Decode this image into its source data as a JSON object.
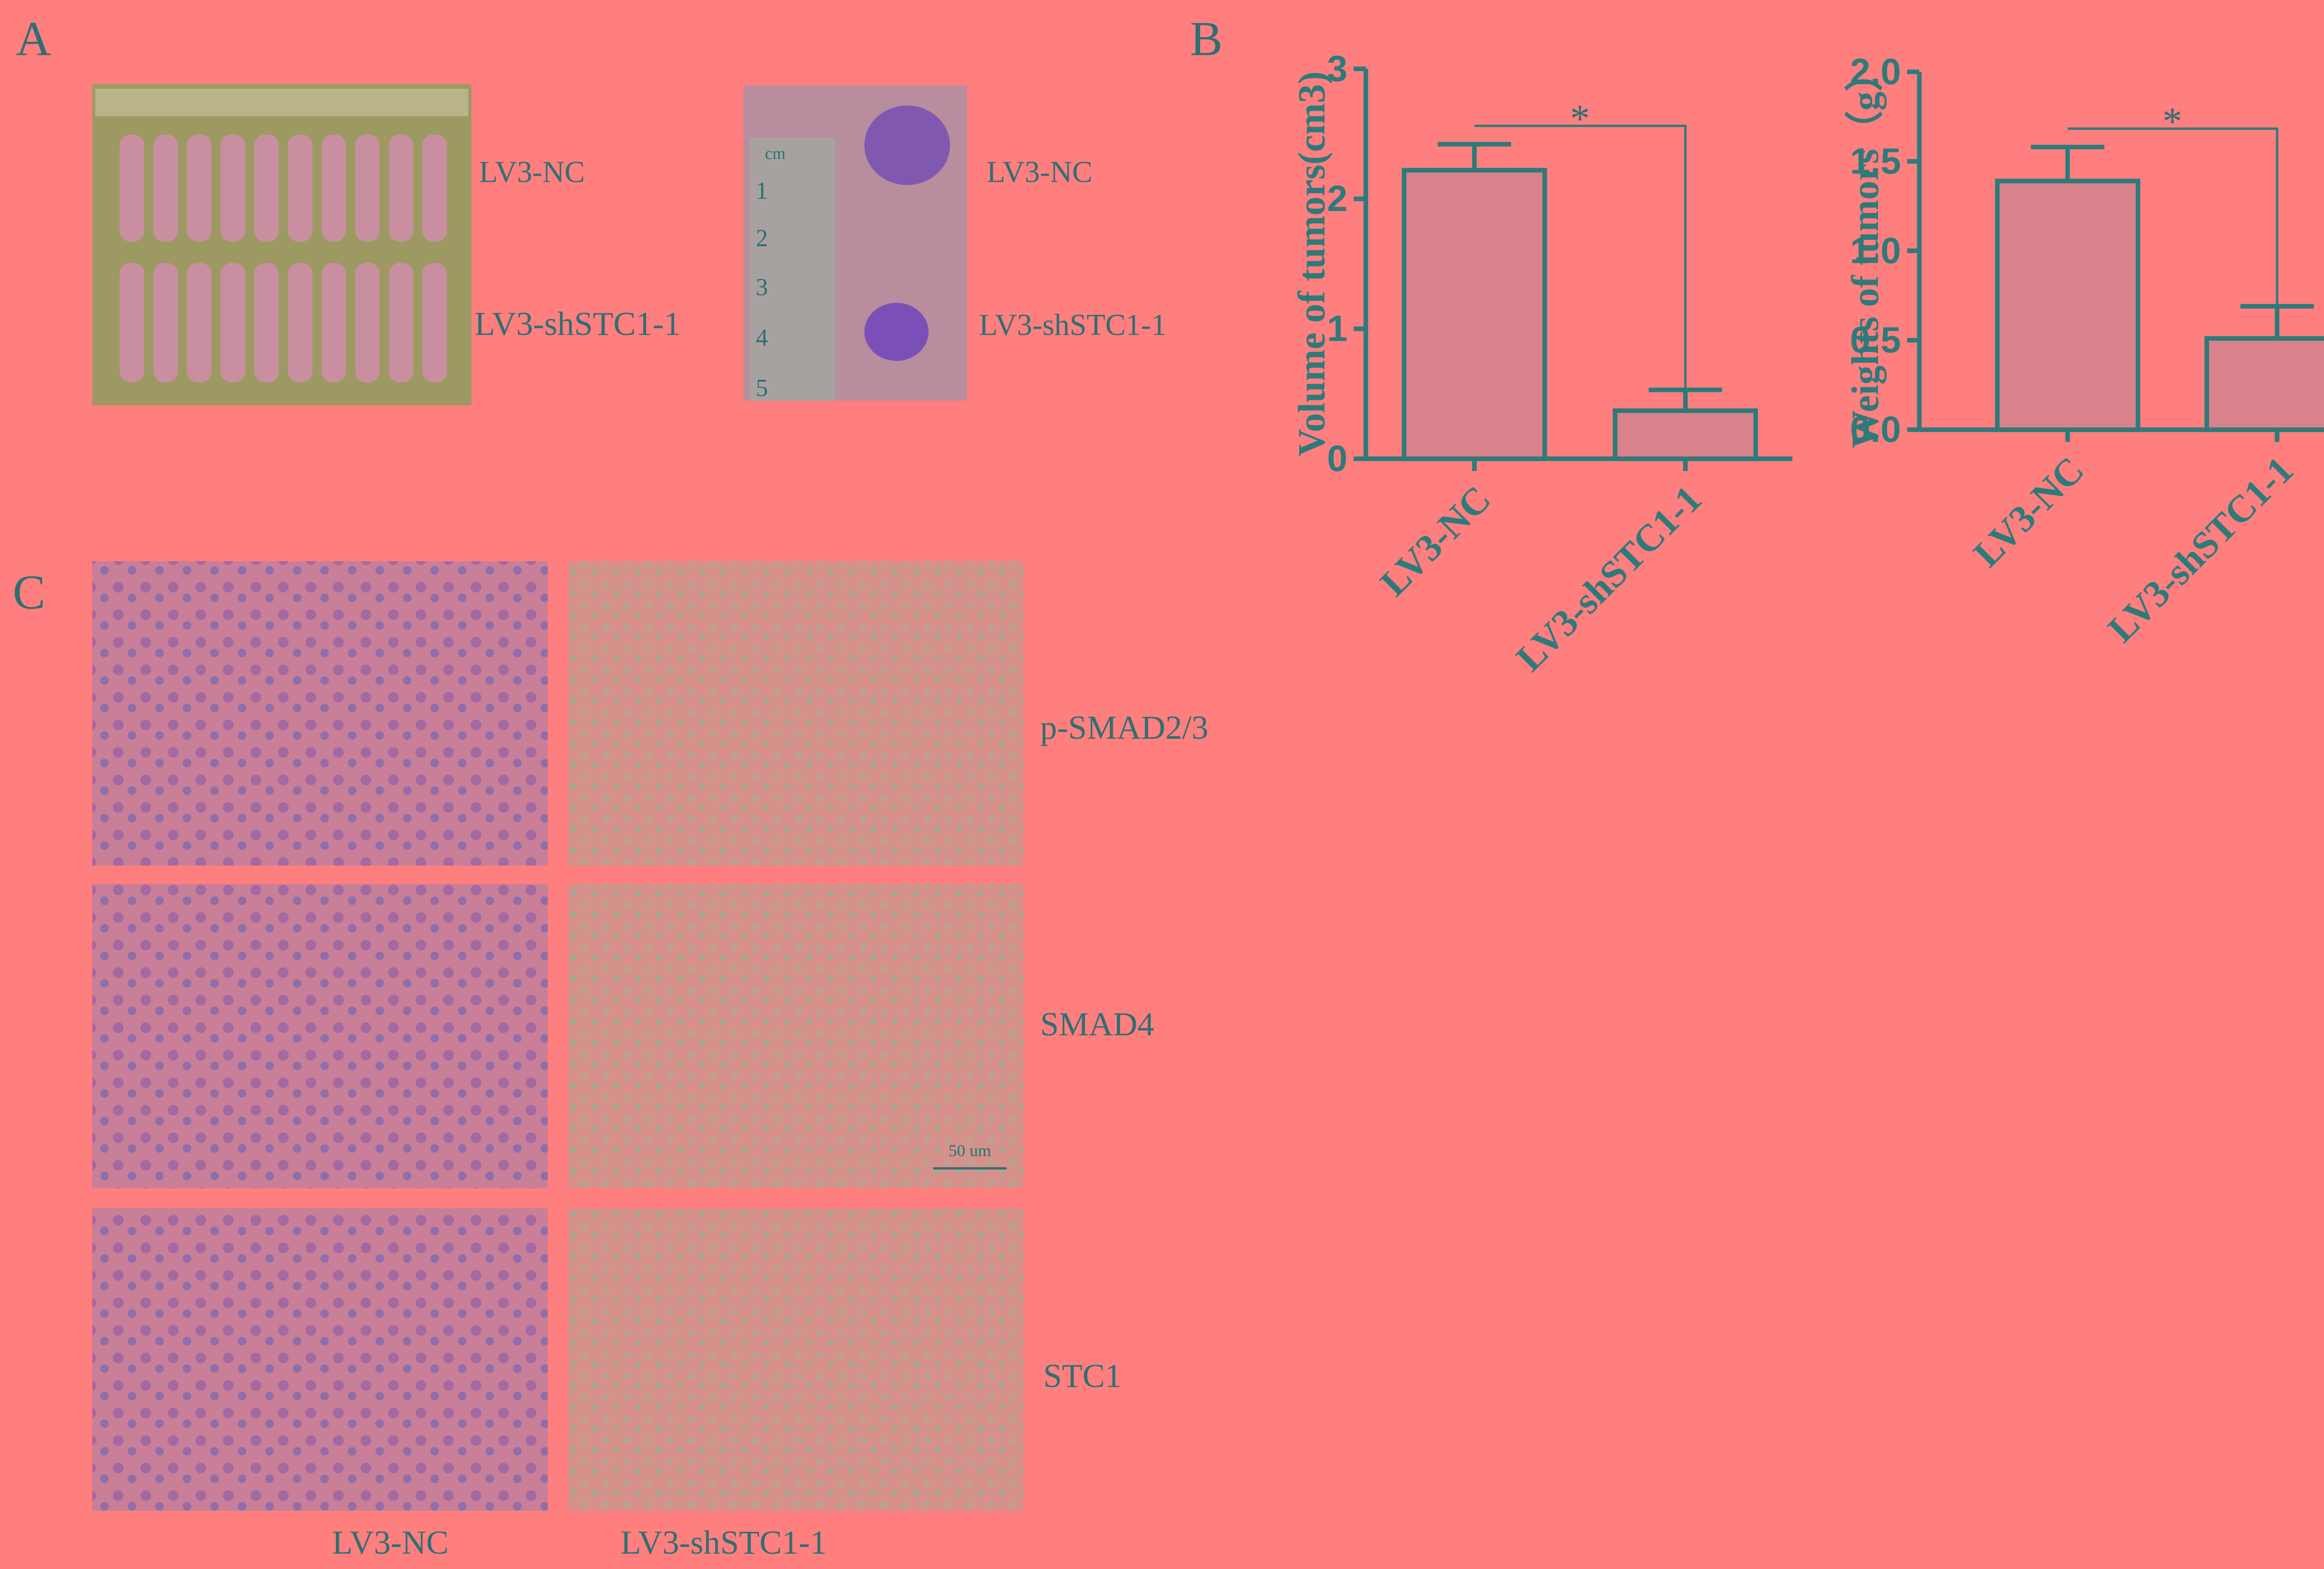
{
  "panels": {
    "a": {
      "label": "A",
      "photo_labels": [
        "LV3-NC",
        "LV3-shSTC1-1",
        "LV3-NC",
        "LV3-shSTC1-1"
      ],
      "ruler_labels": [
        "cm",
        "1",
        "2",
        "3",
        "4",
        "5"
      ]
    },
    "b": {
      "label": "B"
    },
    "c": {
      "label": "C",
      "row_labels": [
        "p-SMAD2/3",
        "SMAD4",
        "STC1"
      ],
      "column_labels": [
        "LV3-NC",
        "LV3-shSTC1-1"
      ],
      "scale_bar": "50 um"
    }
  },
  "chart_data": [
    {
      "type": "bar",
      "y_label": "Volume of tumors(cm3)",
      "categories": [
        "LV3-NC",
        "LV3-shSTC1-1"
      ],
      "values": [
        2.22,
        0.37
      ],
      "errors": [
        0.2,
        0.16
      ],
      "ylim": [
        0,
        3
      ],
      "yticks": [
        0,
        1,
        2,
        3
      ],
      "color": "#d9828c",
      "edge_color": "#2e7a7a",
      "annotation": "*"
    },
    {
      "type": "bar",
      "y_label": "Weights of tumors（g）",
      "categories": [
        "LV3-NC",
        "LV3-shSTC1-1"
      ],
      "values": [
        1.39,
        0.51
      ],
      "errors": [
        0.19,
        0.18
      ],
      "ylim": [
        0,
        2
      ],
      "yticks": [
        {
          "value": 0,
          "label": "0.0"
        },
        {
          "value": 0.5,
          "label": "0.5"
        },
        {
          "value": 1,
          "label": "1.0"
        },
        {
          "value": 1.5,
          "label": "1.5"
        },
        {
          "value": 2,
          "label": "2.0"
        }
      ],
      "color": "#d9828c",
      "edge_color": "#2e7a7a",
      "annotation": "*"
    }
  ]
}
